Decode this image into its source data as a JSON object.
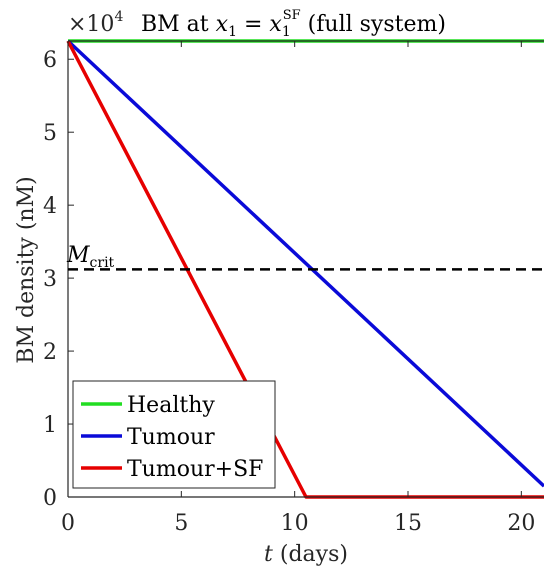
{
  "chart_data": {
    "type": "line",
    "title": "BM at x₁ = x₁ˢᶠ (full system)",
    "title_parts": {
      "lead": "BM at ",
      "var": "x",
      "sub": "1",
      "eq": " = ",
      "var2": "x",
      "sub2": "1",
      "sup2": "SF",
      "tail": " (full system)"
    },
    "y_multiplier": "×10",
    "y_multiplier_exp": "4",
    "xlabel_var": "t",
    "xlabel_unit": "(days)",
    "ylabel": "BM density (nM)",
    "xlim": [
      0,
      21
    ],
    "ylim": [
      0,
      6.25
    ],
    "xticks": [
      0,
      5,
      10,
      15,
      20
    ],
    "yticks": [
      0,
      1,
      2,
      3,
      4,
      5,
      6
    ],
    "grid": false,
    "legend_position": "bottom-left",
    "series": [
      {
        "name": "Healthy",
        "color": "#22dd22",
        "x": [
          0,
          21
        ],
        "y": [
          6.25,
          6.25
        ]
      },
      {
        "name": "Tumour",
        "color": "#0a0ad8",
        "x": [
          0,
          21
        ],
        "y": [
          6.25,
          0.15
        ]
      },
      {
        "name": "Tumour+SF",
        "color": "#e60000",
        "x": [
          0,
          10.5,
          21
        ],
        "y": [
          6.25,
          0,
          0
        ]
      }
    ],
    "annotations": [
      {
        "type": "hline",
        "y": 3.12,
        "style": "dashed",
        "color": "#000000",
        "label_main": "M",
        "label_sub": "crit"
      }
    ]
  }
}
